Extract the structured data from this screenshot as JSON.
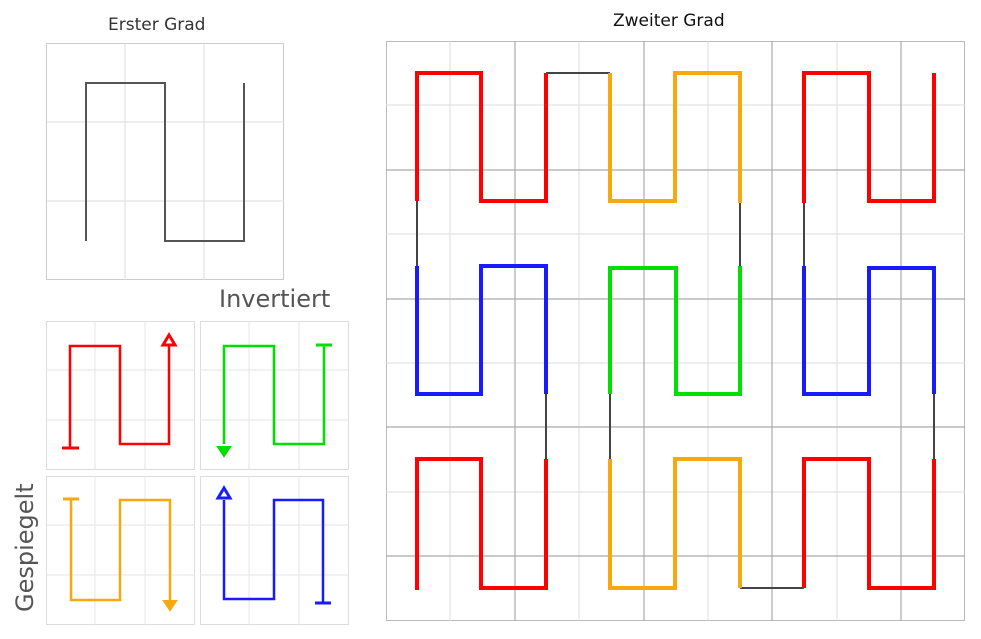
{
  "labels": {
    "first_degree": "Erster Grad",
    "second_degree": "Zweiter Grad",
    "inverted": "Invertiert",
    "mirrored": "Gespiegelt"
  },
  "colors": {
    "grid": "#cccccc",
    "border": "#bbbbbb",
    "gray": "#555555",
    "red": "#ff0000",
    "green": "#00e000",
    "orange": "#f5a810",
    "blue": "#1a1aff"
  },
  "icons": [
    "arrow-head-icon",
    "end-bar-icon"
  ]
}
